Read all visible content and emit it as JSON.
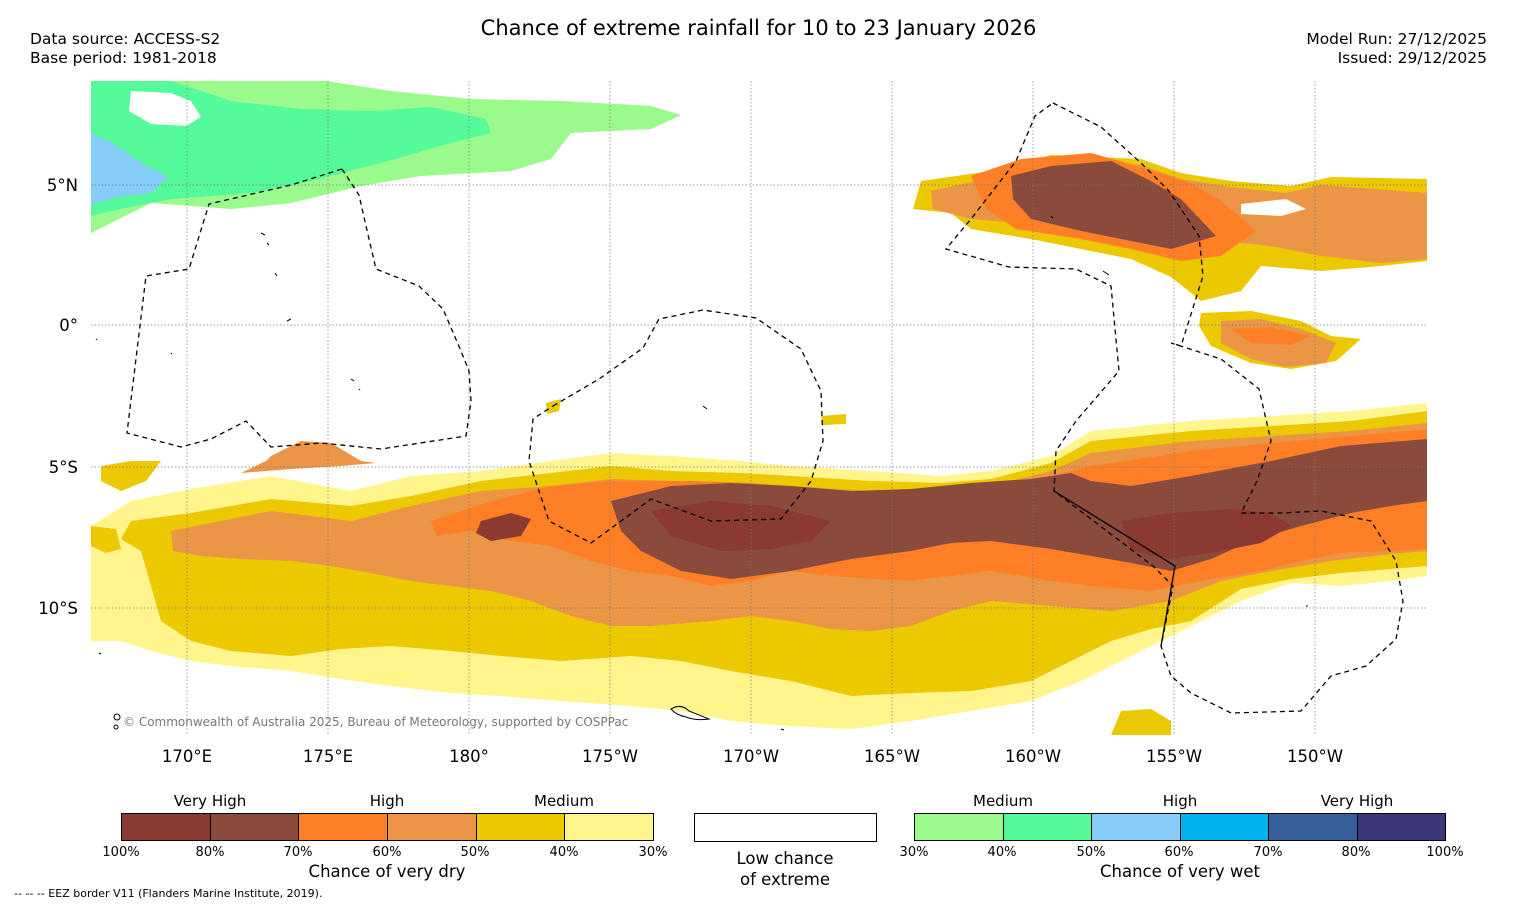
{
  "title": "Chance of extreme rainfall for 10 to 23 January 2026",
  "data_source": "Data source: ACCESS-S2",
  "base_period": "Base period: 1981-2018",
  "model_run": "Model Run: 27/12/2025",
  "issued": "Issued: 29/12/2025",
  "map": {
    "lat_labels": [
      "5°N",
      "0°",
      "5°S",
      "10°S"
    ],
    "lon_labels": [
      "170°E",
      "175°E",
      "180°",
      "175°W",
      "170°W",
      "165°W",
      "160°W",
      "155°W",
      "150°W"
    ],
    "copyright": "© Commonwealth of Australia 2025, Bureau of Meteorology, supported by COSPPac"
  },
  "legend": {
    "dry": {
      "title": "Chance of very dry",
      "categories": [
        "Very High",
        "High",
        "Medium"
      ],
      "ticks": [
        "100%",
        "80%",
        "70%",
        "60%",
        "50%",
        "40%",
        "30%"
      ],
      "colors": [
        "#8b3a32",
        "#8a4a3c",
        "#ff7f27",
        "#eb9646",
        "#ecc800",
        "#fff58c"
      ]
    },
    "low": {
      "title_line1": "Low chance",
      "title_line2": "of extreme"
    },
    "wet": {
      "title": "Chance of very wet",
      "categories": [
        "Medium",
        "High",
        "Very High"
      ],
      "ticks": [
        "30%",
        "40%",
        "50%",
        "60%",
        "70%",
        "80%",
        "100%"
      ],
      "colors": [
        "#9bfa8c",
        "#55fa9b",
        "#87cdfa",
        "#00b4eb",
        "#375f9b",
        "#3c3778"
      ]
    }
  },
  "footnote": "--  --  -- EEZ border V11 (Flanders Marine Institute, 2019)."
}
